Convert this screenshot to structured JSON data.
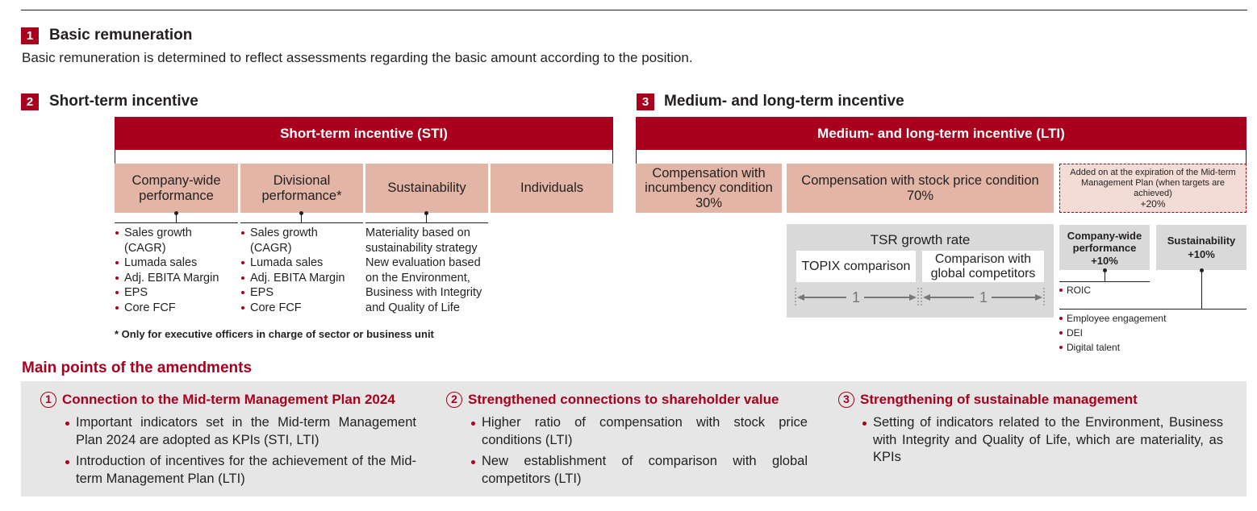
{
  "section1": {
    "number": "1",
    "title": "Basic remuneration",
    "description": "Basic remuneration is determined to reflect assessments regarding the basic amount according to the position."
  },
  "section2": {
    "number": "2",
    "title": "Short-term incentive",
    "bar": "Short-term incentive (STI)",
    "columns": [
      {
        "label": "Company-wide performance",
        "items": [
          "Sales growth (CAGR)",
          "Lumada sales",
          "Adj. EBITA Margin",
          "EPS",
          "Core FCF"
        ]
      },
      {
        "label": "Divisional performance*",
        "items": [
          "Sales growth (CAGR)",
          "Lumada sales",
          "Adj. EBITA Margin",
          "EPS",
          "Core FCF"
        ]
      },
      {
        "label": "Sustainability",
        "text": "Materiality based on sustainability strategy New evaluation based on the Environment, Business with Integrity and Quality of Life"
      },
      {
        "label": "Individuals"
      }
    ],
    "footnote": "* Only for executive officers in charge of sector or business unit"
  },
  "section3": {
    "number": "3",
    "title": "Medium- and long-term incentive",
    "bar": "Medium- and long-term incentive (LTI)",
    "incumbency": {
      "label": "Compensation with incumbency condition",
      "pct": "30%"
    },
    "stock": {
      "label": "Compensation with stock price condition",
      "pct": "70%"
    },
    "added": {
      "label": "Added on at the expiration of the Mid-term Management Plan (when targets are achieved)",
      "pct": "+20%"
    },
    "tsr": {
      "title": "TSR growth rate",
      "topix": "TOPIX comparison",
      "global": "Comparison with global competitors",
      "ratio_left": "1",
      "ratio_right": "1"
    },
    "company_perf": {
      "label": "Company-wide performance",
      "pct": "+10%",
      "items": [
        "ROIC"
      ]
    },
    "sustainability": {
      "label": "Sustainability",
      "pct": "+10%",
      "items": [
        "Employee engagement",
        "DEI",
        "Digital talent"
      ]
    }
  },
  "amendments": {
    "title": "Main points of the amendments",
    "points": [
      {
        "num": "1",
        "title": "Connection to the Mid-term Management Plan 2024",
        "items": [
          "Important indicators set in the Mid-term Management Plan 2024 are adopted as KPIs (STI, LTI)",
          "Introduction of incentives for the achievement of the Mid-term Management Plan (LTI)"
        ]
      },
      {
        "num": "2",
        "title": "Strengthened connections to shareholder value",
        "items": [
          "Higher ratio of compensation with stock price conditions (LTI)",
          "New establishment of comparison with global competitors (LTI)"
        ]
      },
      {
        "num": "3",
        "title": "Strengthening of sustainable management",
        "items": [
          "Setting of indicators related to the Environment, Business with Integrity and Quality of Life, which are materiality, as KPIs"
        ]
      }
    ]
  },
  "colors": {
    "accent": "#a8001d",
    "pink": "#e2b5a6",
    "gray": "#d9d9d9",
    "panel": "#e6e6e6"
  }
}
